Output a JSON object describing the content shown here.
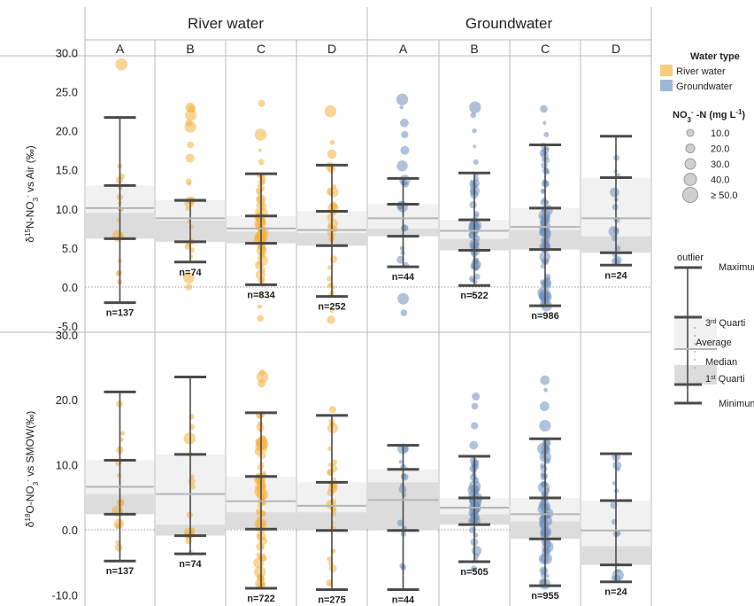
{
  "chart_data": {
    "type": "box-with-jitter",
    "column_groups": [
      "River water",
      "Groundwater"
    ],
    "categories": [
      "A",
      "B",
      "C",
      "D"
    ],
    "panels": [
      {
        "id": "top",
        "ylabel_html": "δ<tspan baseline-shift='super' font-size='8'>15</tspan>N-NO<tspan baseline-shift='sub' font-size='8'>3</tspan><tspan baseline-shift='super' font-size='8'>-</tspan> vs Air (‰)",
        "ylabel_text": "δ15N-NO3- vs Air (‰)",
        "ylim": [
          -5.5,
          30.8
        ],
        "yticks": [
          -5.0,
          0.0,
          5.0,
          10.0,
          15.0,
          20.0,
          25.0,
          30.0
        ],
        "ytick_labels": [
          "-5.0",
          "0.0",
          "5.0",
          "10.0",
          "15.0",
          "20.0",
          "25.0",
          "30.0"
        ],
        "boxes": [
          {
            "group": "River water",
            "cat": "A",
            "min": -2.0,
            "q1": 6.2,
            "median": 9.5,
            "mean": 10.1,
            "q3": 13.0,
            "max": 21.7,
            "n_label": "n=137",
            "outliers": [
              28.5
            ]
          },
          {
            "group": "River water",
            "cat": "B",
            "min": 3.2,
            "q1": 5.8,
            "median": 8.5,
            "mean": 8.8,
            "q3": 11.1,
            "max": 11.1,
            "n_label": "n=74",
            "outliers": [
              0.0,
              1.2,
              13.2,
              13.5,
              16.5,
              18.2,
              20.5,
              21.0,
              22.0,
              22.8,
              23.0
            ]
          },
          {
            "group": "River water",
            "cat": "C",
            "min": 0.3,
            "q1": 5.6,
            "median": 7.1,
            "mean": 7.5,
            "q3": 9.1,
            "max": 14.5,
            "n_label": "n=834",
            "outliers": [
              -4.0,
              -2.5,
              -1.0,
              16.0,
              17.5,
              19.5,
              23.5
            ]
          },
          {
            "group": "River water",
            "cat": "D",
            "min": -1.2,
            "q1": 5.3,
            "median": 6.9,
            "mean": 7.3,
            "q3": 9.7,
            "max": 15.6,
            "n_label": "n=252",
            "outliers": [
              -4.2,
              -3.0,
              17.0,
              18.5,
              22.5
            ]
          },
          {
            "group": "Groundwater",
            "cat": "A",
            "min": 2.6,
            "q1": 6.5,
            "median": 7.5,
            "mean": 8.8,
            "q3": 10.6,
            "max": 13.9,
            "n_label": "n=44",
            "outliers": [
              -3.3,
              -1.5,
              15.5,
              17.5,
              19.5,
              21.0,
              23.0,
              24.0
            ]
          },
          {
            "group": "Groundwater",
            "cat": "B",
            "min": 0.2,
            "q1": 4.7,
            "median": 6.2,
            "mean": 7.2,
            "q3": 8.6,
            "max": 14.6,
            "n_label": "n=522",
            "outliers": [
              -1.0,
              16.0,
              18.0,
              20.0,
              22.0,
              23.0
            ]
          },
          {
            "group": "Groundwater",
            "cat": "C",
            "min": -2.4,
            "q1": 4.8,
            "median": 7.3,
            "mean": 7.7,
            "q3": 10.1,
            "max": 18.2,
            "n_label": "n=986",
            "outliers": [
              19.5,
              21.0,
              22.8
            ]
          },
          {
            "group": "Groundwater",
            "cat": "D",
            "min": 2.8,
            "q1": 4.4,
            "median": 6.5,
            "mean": 8.8,
            "q3": 14.0,
            "max": 19.3,
            "n_label": "n=24",
            "outliers": []
          }
        ]
      },
      {
        "id": "bottom",
        "ylabel_html": "δ<tspan baseline-shift='super' font-size='8'>18</tspan>O-NO<tspan baseline-shift='sub' font-size='8'>3</tspan><tspan baseline-shift='super' font-size='8'>-</tspan> vs SMOW(‰)",
        "ylabel_text": "δ18O-NO3- vs SMOW(‰)",
        "ylim": [
          -11.0,
          31.0
        ],
        "yticks": [
          -10.0,
          0.0,
          10.0,
          20.0,
          30.0
        ],
        "ytick_labels": [
          "-10.0",
          "0.0",
          "10.0",
          "20.0",
          "30.0"
        ],
        "boxes": [
          {
            "group": "River water",
            "cat": "A",
            "min": -4.8,
            "q1": 2.4,
            "median": 5.5,
            "mean": 6.6,
            "q3": 10.7,
            "max": 21.2,
            "n_label": "n=137",
            "outliers": []
          },
          {
            "group": "River water",
            "cat": "B",
            "min": -3.7,
            "q1": -0.9,
            "median": 0.8,
            "mean": 5.5,
            "q3": 11.6,
            "max": 23.5,
            "n_label": "n=74",
            "outliers": []
          },
          {
            "group": "River water",
            "cat": "C",
            "min": -9.0,
            "q1": 0.1,
            "median": 2.7,
            "mean": 4.4,
            "q3": 8.2,
            "max": 18.0,
            "n_label": "n=722",
            "outliers": [
              22.5,
              23.5,
              24.2
            ]
          },
          {
            "group": "River water",
            "cat": "D",
            "min": -9.2,
            "q1": -0.1,
            "median": 2.7,
            "mean": 3.7,
            "q3": 7.3,
            "max": 17.6,
            "n_label": "n=275",
            "outliers": [
              18.5
            ]
          },
          {
            "group": "Groundwater",
            "cat": "A",
            "min": -9.2,
            "q1": -0.1,
            "median": 7.3,
            "mean": 4.6,
            "q3": 9.3,
            "max": 13.0,
            "n_label": "n=44",
            "outliers": []
          },
          {
            "group": "Groundwater",
            "cat": "B",
            "min": -4.9,
            "q1": 0.8,
            "median": 2.4,
            "mean": 3.4,
            "q3": 4.9,
            "max": 11.3,
            "n_label": "n=505",
            "outliers": [
              -6.0,
              13.0,
              16.0,
              19.0,
              20.5
            ]
          },
          {
            "group": "Groundwater",
            "cat": "C",
            "min": -8.6,
            "q1": -1.4,
            "median": 1.3,
            "mean": 2.4,
            "q3": 4.9,
            "max": 14.0,
            "n_label": "n=955",
            "outliers": [
              16.0,
              19.0,
              21.5,
              23.0
            ]
          },
          {
            "group": "Groundwater",
            "cat": "D",
            "min": -8.0,
            "q1": -5.4,
            "median": -2.5,
            "mean": -0.1,
            "q3": 4.5,
            "max": 11.7,
            "n_label": "n=24",
            "outliers": []
          }
        ]
      }
    ],
    "series": [
      {
        "name": "River water",
        "color": "#F6B13C"
      },
      {
        "name": "Groundwater",
        "color": "#6F8FBB"
      }
    ],
    "legend": {
      "placement": "right",
      "color_title": "Water type",
      "color_items": [
        "River water",
        "Groundwater"
      ],
      "size_title_html": "NO<tspan baseline-shift='sub' font-size='8'>3</tspan><tspan baseline-shift='super' font-size='8'>-</tspan> -N (mg L<tspan baseline-shift='super' font-size='8'>-1</tspan>)",
      "size_title_text": "NO3- -N (mg L-1)",
      "size_items": [
        "10.0",
        "20.0",
        "30.0",
        "40.0",
        "≥ 50.0"
      ],
      "box_key": {
        "outlier": "outlier",
        "maximum": "Maximum",
        "q3_html": "3<tspan baseline-shift='super' font-size='7'>rd</tspan> Quarti",
        "q3_text": "3rd Quarti",
        "average": "Average",
        "median": "Median",
        "q1_html": "1<tspan baseline-shift='super' font-size='7'>st</tspan> Quarti",
        "q1_text": "1st Quarti",
        "minimum": "Minimum"
      }
    },
    "grid": false
  }
}
